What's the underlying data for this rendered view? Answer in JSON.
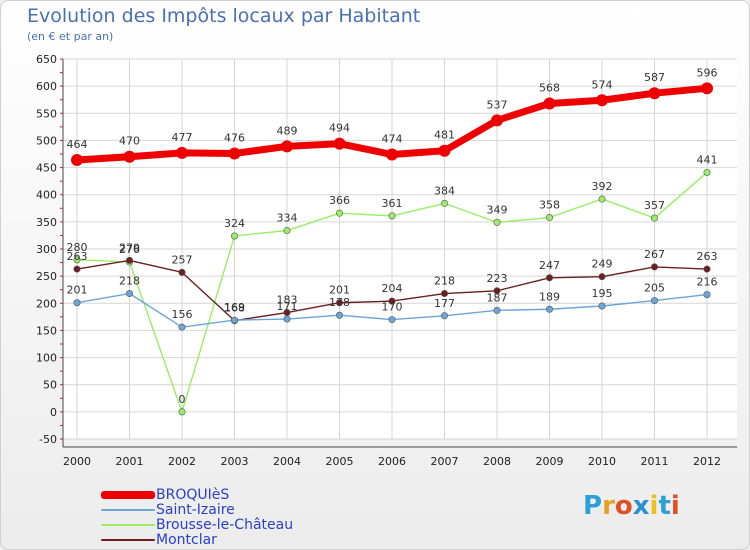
{
  "chart_data": {
    "type": "line",
    "title": "Evolution des Impôts locaux par Habitant",
    "subtitle": "(en € et par an)",
    "xlabel": "",
    "ylabel": "",
    "ylim": [
      -50,
      650
    ],
    "yticks": [
      "650",
      "600",
      "550",
      "500",
      "450",
      "400",
      "350",
      "300",
      "250",
      "200",
      "150",
      "100",
      "50",
      "0",
      "-50"
    ],
    "x": [
      "2000",
      "2001",
      "2002",
      "2003",
      "2004",
      "2005",
      "2006",
      "2007",
      "2008",
      "2009",
      "2010",
      "2011",
      "2012"
    ],
    "series": [
      {
        "name": "BROQUIèS",
        "color": "#ee0000",
        "values": [
          464,
          470,
          477,
          476,
          489,
          494,
          474,
          481,
          537,
          568,
          574,
          587,
          596
        ]
      },
      {
        "name": "Saint-Izaire",
        "color": "#6aa6d8",
        "values": [
          201,
          218,
          156,
          169,
          171,
          178,
          170,
          177,
          187,
          189,
          195,
          205,
          216
        ]
      },
      {
        "name": "Brousse-le-Château",
        "color": "#99ee66",
        "values": [
          280,
          276,
          0,
          324,
          334,
          366,
          361,
          384,
          349,
          358,
          392,
          357,
          441
        ]
      },
      {
        "name": "Montclar",
        "color": "#6b1f1f",
        "values": [
          263,
          279,
          257,
          168,
          183,
          201,
          204,
          218,
          223,
          247,
          249,
          267,
          263
        ]
      }
    ],
    "legend_position": "bottom-left",
    "grid": true
  },
  "branding": {
    "logo_letters": [
      "P",
      "r",
      "o",
      "x",
      "i",
      "t",
      "i"
    ]
  }
}
